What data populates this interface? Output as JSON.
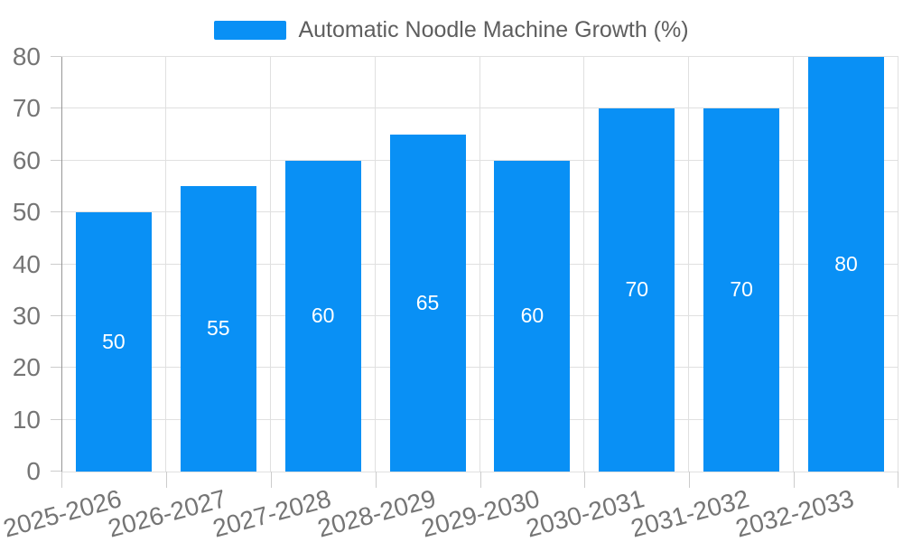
{
  "legend": {
    "label": "Automatic Noodle Machine Growth (%)"
  },
  "chart_data": {
    "type": "bar",
    "title": "Automatic Noodle Machine Growth (%)",
    "categories": [
      "2025-2026",
      "2026-2027",
      "2027-2028",
      "2028-2029",
      "2029-2030",
      "2030-2031",
      "2031-2032",
      "2032-2033"
    ],
    "values": [
      50,
      55,
      60,
      65,
      60,
      70,
      70,
      80
    ],
    "value_labels": [
      "50",
      "55",
      "60",
      "65",
      "60",
      "70",
      "70",
      "80"
    ],
    "xlabel": "",
    "ylabel": "",
    "ylim": [
      0,
      80
    ],
    "yticks": [
      0,
      10,
      20,
      30,
      40,
      50,
      60,
      70,
      80
    ],
    "grid": true,
    "legend_position": "top",
    "bar_color": "#0990F5",
    "value_label_color": "#FFFFFF"
  },
  "style": {
    "background": "#FFFFFF",
    "grid_color": "#E0E0E0",
    "axis_line_color": "#969696",
    "tick_color": "#CCCCCC",
    "axis_label_color": "#757575",
    "legend_text_color": "#5E5E5E"
  }
}
